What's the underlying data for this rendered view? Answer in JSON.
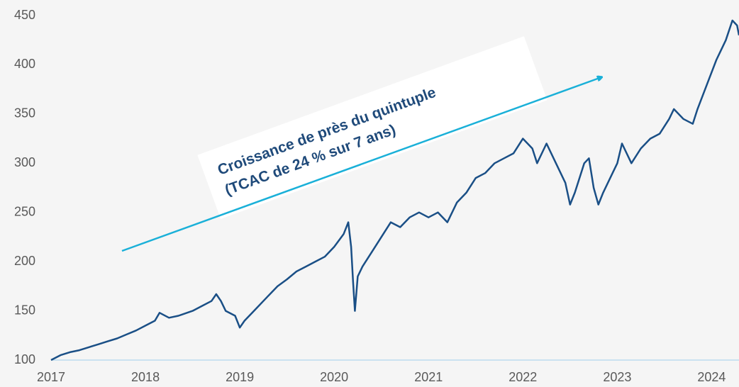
{
  "chart_data": {
    "type": "line",
    "annotation": [
      "Croissance de près du quintuple",
      "(TCAC de 24 % sur 7 ans)"
    ],
    "x": [
      2017.0,
      2017.1,
      2017.2,
      2017.3,
      2017.4,
      2017.5,
      2017.6,
      2017.7,
      2017.8,
      2017.9,
      2018.0,
      2018.1,
      2018.15,
      2018.25,
      2018.35,
      2018.5,
      2018.6,
      2018.7,
      2018.75,
      2018.8,
      2018.85,
      2018.95,
      2019.0,
      2019.05,
      2019.15,
      2019.3,
      2019.4,
      2019.5,
      2019.6,
      2019.7,
      2019.8,
      2019.9,
      2020.0,
      2020.1,
      2020.15,
      2020.18,
      2020.2,
      2020.22,
      2020.25,
      2020.3,
      2020.4,
      2020.5,
      2020.6,
      2020.7,
      2020.8,
      2020.9,
      2021.0,
      2021.1,
      2021.2,
      2021.3,
      2021.4,
      2021.5,
      2021.6,
      2021.7,
      2021.8,
      2021.9,
      2022.0,
      2022.1,
      2022.15,
      2022.25,
      2022.35,
      2022.45,
      2022.5,
      2022.55,
      2022.65,
      2022.7,
      2022.75,
      2022.8,
      2022.85,
      2022.95,
      2023.0,
      2023.05,
      2023.15,
      2023.25,
      2023.35,
      2023.45,
      2023.55,
      2023.6,
      2023.7,
      2023.8,
      2023.85,
      2023.95,
      2024.05,
      2024.15,
      2024.22,
      2024.27,
      2024.29
    ],
    "series": [
      {
        "color": "#1a4f86",
        "values": [
          100,
          105,
          108,
          110,
          113,
          116,
          119,
          122,
          126,
          130,
          135,
          140,
          148,
          143,
          145,
          150,
          155,
          160,
          167,
          160,
          150,
          145,
          133,
          140,
          150,
          165,
          175,
          182,
          190,
          195,
          200,
          205,
          215,
          228,
          240,
          215,
          180,
          150,
          185,
          195,
          210,
          225,
          240,
          235,
          245,
          250,
          245,
          250,
          240,
          260,
          270,
          285,
          290,
          300,
          305,
          310,
          325,
          315,
          300,
          320,
          300,
          280,
          258,
          270,
          300,
          305,
          275,
          258,
          270,
          290,
          300,
          320,
          300,
          315,
          325,
          330,
          345,
          355,
          345,
          340,
          355,
          380,
          405,
          425,
          445,
          440,
          430
        ]
      }
    ],
    "arrow_color": "#1ab0d8",
    "xlim": [
      2017,
      2024.29
    ],
    "xticks": [
      2017,
      2018,
      2019,
      2020,
      2021,
      2022,
      2023,
      2024
    ],
    "ylim": [
      100,
      450
    ],
    "yticks": [
      100,
      150,
      200,
      250,
      300,
      350,
      400,
      450
    ]
  }
}
